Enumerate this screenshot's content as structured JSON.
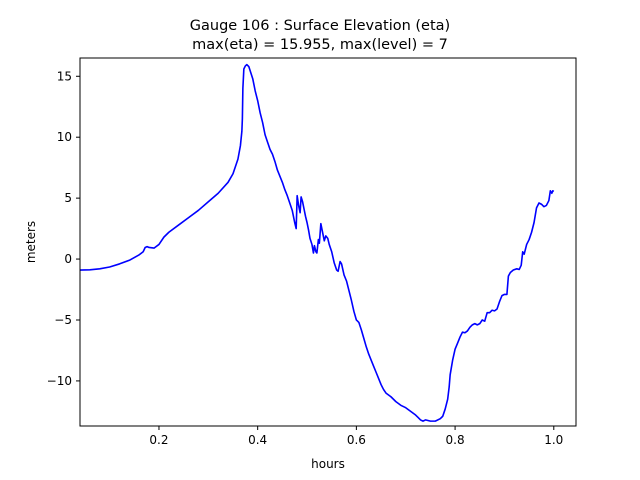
{
  "chart_data": {
    "type": "line",
    "title_line1": "Gauge 106 : Surface Elevation (eta)",
    "title_line2": "max(eta) =  15.955,    max(level) = 7",
    "xlabel": "hours",
    "ylabel": "meters",
    "xlim": [
      0.04,
      1.045
    ],
    "ylim": [
      -13.7,
      16.5
    ],
    "xticks": [
      0.2,
      0.4,
      0.6,
      0.8,
      1.0
    ],
    "xtick_labels": [
      "0.2",
      "0.4",
      "0.6",
      "0.8",
      "1.0"
    ],
    "yticks": [
      15,
      10,
      5,
      0,
      -5,
      -10
    ],
    "ytick_labels": [
      "15",
      "10",
      "5",
      "0",
      "−5",
      "−10"
    ],
    "grid": false,
    "series": [
      {
        "color": "#0000ff",
        "points": [
          [
            0.04,
            -0.9
          ],
          [
            0.06,
            -0.88
          ],
          [
            0.08,
            -0.8
          ],
          [
            0.1,
            -0.65
          ],
          [
            0.12,
            -0.4
          ],
          [
            0.14,
            -0.1
          ],
          [
            0.16,
            0.35
          ],
          [
            0.168,
            0.6
          ],
          [
            0.172,
            0.95
          ],
          [
            0.176,
            1.02
          ],
          [
            0.18,
            0.95
          ],
          [
            0.19,
            0.9
          ],
          [
            0.2,
            1.2
          ],
          [
            0.21,
            1.8
          ],
          [
            0.22,
            2.2
          ],
          [
            0.24,
            2.8
          ],
          [
            0.26,
            3.4
          ],
          [
            0.28,
            4.0
          ],
          [
            0.3,
            4.7
          ],
          [
            0.32,
            5.4
          ],
          [
            0.34,
            6.3
          ],
          [
            0.35,
            7.0
          ],
          [
            0.36,
            8.2
          ],
          [
            0.365,
            9.3
          ],
          [
            0.368,
            10.5
          ],
          [
            0.369,
            11.5
          ],
          [
            0.37,
            14.0
          ],
          [
            0.372,
            15.6
          ],
          [
            0.375,
            15.85
          ],
          [
            0.378,
            15.955
          ],
          [
            0.382,
            15.8
          ],
          [
            0.386,
            15.3
          ],
          [
            0.39,
            14.8
          ],
          [
            0.395,
            13.8
          ],
          [
            0.4,
            13.0
          ],
          [
            0.405,
            12.0
          ],
          [
            0.41,
            11.2
          ],
          [
            0.415,
            10.2
          ],
          [
            0.42,
            9.6
          ],
          [
            0.425,
            9.0
          ],
          [
            0.43,
            8.6
          ],
          [
            0.435,
            8.0
          ],
          [
            0.44,
            7.3
          ],
          [
            0.445,
            6.8
          ],
          [
            0.45,
            6.3
          ],
          [
            0.455,
            5.7
          ],
          [
            0.46,
            5.2
          ],
          [
            0.465,
            4.6
          ],
          [
            0.47,
            4.0
          ],
          [
            0.475,
            3.0
          ],
          [
            0.478,
            2.5
          ],
          [
            0.48,
            5.2
          ],
          [
            0.483,
            4.4
          ],
          [
            0.486,
            3.8
          ],
          [
            0.488,
            5.1
          ],
          [
            0.491,
            4.7
          ],
          [
            0.494,
            4.1
          ],
          [
            0.497,
            3.5
          ],
          [
            0.5,
            3.0
          ],
          [
            0.503,
            2.4
          ],
          [
            0.506,
            1.7
          ],
          [
            0.51,
            1.2
          ],
          [
            0.513,
            0.5
          ],
          [
            0.515,
            1.1
          ],
          [
            0.518,
            0.6
          ],
          [
            0.52,
            0.5
          ],
          [
            0.523,
            1.6
          ],
          [
            0.525,
            1.3
          ],
          [
            0.528,
            2.9
          ],
          [
            0.531,
            2.3
          ],
          [
            0.535,
            1.5
          ],
          [
            0.538,
            1.9
          ],
          [
            0.542,
            1.7
          ],
          [
            0.545,
            1.2
          ],
          [
            0.55,
            0.6
          ],
          [
            0.555,
            -0.3
          ],
          [
            0.56,
            -0.9
          ],
          [
            0.563,
            -1.0
          ],
          [
            0.567,
            -0.2
          ],
          [
            0.57,
            -0.4
          ],
          [
            0.575,
            -1.3
          ],
          [
            0.58,
            -1.8
          ],
          [
            0.585,
            -2.6
          ],
          [
            0.59,
            -3.4
          ],
          [
            0.595,
            -4.3
          ],
          [
            0.6,
            -5.0
          ],
          [
            0.605,
            -5.2
          ],
          [
            0.61,
            -5.8
          ],
          [
            0.615,
            -6.5
          ],
          [
            0.62,
            -7.2
          ],
          [
            0.625,
            -7.8
          ],
          [
            0.63,
            -8.3
          ],
          [
            0.635,
            -8.8
          ],
          [
            0.64,
            -9.3
          ],
          [
            0.645,
            -9.8
          ],
          [
            0.65,
            -10.3
          ],
          [
            0.655,
            -10.7
          ],
          [
            0.66,
            -11.0
          ],
          [
            0.67,
            -11.3
          ],
          [
            0.68,
            -11.7
          ],
          [
            0.69,
            -12.0
          ],
          [
            0.7,
            -12.2
          ],
          [
            0.71,
            -12.5
          ],
          [
            0.72,
            -12.8
          ],
          [
            0.725,
            -13.0
          ],
          [
            0.73,
            -13.2
          ],
          [
            0.735,
            -13.3
          ],
          [
            0.74,
            -13.2
          ],
          [
            0.75,
            -13.3
          ],
          [
            0.76,
            -13.3
          ],
          [
            0.77,
            -13.1
          ],
          [
            0.775,
            -12.9
          ],
          [
            0.78,
            -12.3
          ],
          [
            0.785,
            -11.5
          ],
          [
            0.788,
            -10.5
          ],
          [
            0.79,
            -9.5
          ],
          [
            0.795,
            -8.3
          ],
          [
            0.8,
            -7.4
          ],
          [
            0.805,
            -6.9
          ],
          [
            0.81,
            -6.4
          ],
          [
            0.815,
            -6.0
          ],
          [
            0.82,
            -6.05
          ],
          [
            0.825,
            -5.9
          ],
          [
            0.83,
            -5.6
          ],
          [
            0.835,
            -5.4
          ],
          [
            0.84,
            -5.3
          ],
          [
            0.845,
            -5.4
          ],
          [
            0.85,
            -5.3
          ],
          [
            0.855,
            -5.0
          ],
          [
            0.86,
            -5.1
          ],
          [
            0.865,
            -4.4
          ],
          [
            0.87,
            -4.4
          ],
          [
            0.875,
            -4.2
          ],
          [
            0.88,
            -4.25
          ],
          [
            0.885,
            -4.1
          ],
          [
            0.89,
            -3.5
          ],
          [
            0.895,
            -3.0
          ],
          [
            0.9,
            -2.9
          ],
          [
            0.905,
            -2.9
          ],
          [
            0.908,
            -1.4
          ],
          [
            0.912,
            -1.1
          ],
          [
            0.918,
            -0.9
          ],
          [
            0.925,
            -0.8
          ],
          [
            0.93,
            -0.85
          ],
          [
            0.934,
            -0.5
          ],
          [
            0.937,
            0.6
          ],
          [
            0.94,
            0.4
          ],
          [
            0.945,
            1.2
          ],
          [
            0.95,
            1.6
          ],
          [
            0.955,
            2.2
          ],
          [
            0.96,
            3.0
          ],
          [
            0.965,
            4.2
          ],
          [
            0.97,
            4.6
          ],
          [
            0.975,
            4.5
          ],
          [
            0.98,
            4.3
          ],
          [
            0.985,
            4.4
          ],
          [
            0.99,
            4.8
          ],
          [
            0.993,
            5.6
          ],
          [
            0.996,
            5.4
          ],
          [
            0.998,
            5.6
          ],
          [
            1.0,
            5.55
          ]
        ]
      }
    ]
  }
}
